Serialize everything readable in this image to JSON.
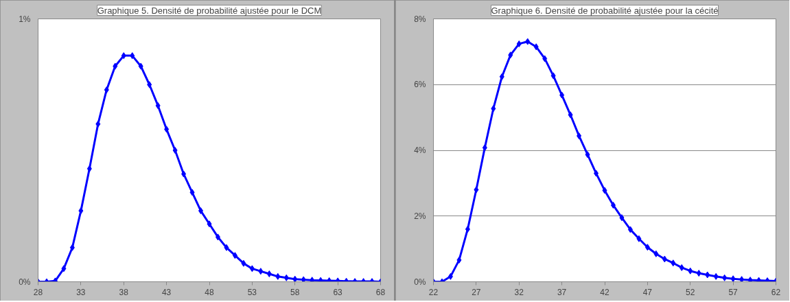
{
  "chart_data": [
    {
      "type": "line",
      "title": "Graphique 5. Densité de probabilité ajustée pour le DCM",
      "x": [
        28,
        29,
        30,
        31,
        32,
        33,
        34,
        35,
        36,
        37,
        38,
        39,
        40,
        41,
        42,
        43,
        44,
        45,
        46,
        47,
        48,
        49,
        50,
        51,
        52,
        53,
        54,
        55,
        56,
        57,
        58,
        59,
        60,
        61,
        62,
        63,
        64,
        65,
        66,
        67,
        68
      ],
      "series": [
        {
          "color": "#0000ff",
          "values": [
            0,
            0,
            0.003,
            0.05,
            0.13,
            0.27,
            0.43,
            0.6,
            0.73,
            0.82,
            0.86,
            0.86,
            0.82,
            0.75,
            0.67,
            0.58,
            0.5,
            0.41,
            0.34,
            0.27,
            0.22,
            0.17,
            0.13,
            0.1,
            0.07,
            0.05,
            0.04,
            0.03,
            0.02,
            0.015,
            0.01,
            0.008,
            0.006,
            0.005,
            0.004,
            0.003,
            0.002,
            0.001,
            0.001,
            0.001,
            0
          ]
        }
      ],
      "xlim": [
        28,
        68
      ],
      "xticks": [
        28,
        33,
        38,
        43,
        48,
        53,
        58,
        63,
        68
      ],
      "ylim": [
        0,
        1
      ],
      "yticks": [
        {
          "value": 0,
          "label": "0%"
        },
        {
          "value": 1,
          "label": "1%"
        }
      ],
      "grid": "y",
      "marker": "diamond",
      "line_style": "solid"
    },
    {
      "type": "line",
      "title": "Graphique 6. Densité de probabilité ajustée pour la cécité",
      "x": [
        22,
        23,
        24,
        25,
        26,
        27,
        28,
        29,
        30,
        31,
        32,
        33,
        34,
        35,
        36,
        37,
        38,
        39,
        40,
        41,
        42,
        43,
        44,
        45,
        46,
        47,
        48,
        49,
        50,
        51,
        52,
        53,
        54,
        55,
        56,
        57,
        58,
        59,
        60,
        61,
        62
      ],
      "series": [
        {
          "color": "#0000ff",
          "values": [
            0,
            0,
            0.16,
            0.66,
            1.6,
            2.8,
            4.08,
            5.27,
            6.24,
            6.9,
            7.24,
            7.31,
            7.15,
            6.79,
            6.27,
            5.68,
            5.08,
            4.44,
            3.87,
            3.3,
            2.78,
            2.33,
            1.95,
            1.59,
            1.31,
            1.05,
            0.85,
            0.69,
            0.57,
            0.43,
            0.33,
            0.26,
            0.21,
            0.16,
            0.12,
            0.09,
            0.07,
            0.05,
            0.04,
            0.03,
            0.02
          ]
        }
      ],
      "xlim": [
        22,
        62
      ],
      "xticks": [
        22,
        27,
        32,
        37,
        42,
        47,
        52,
        57,
        62
      ],
      "ylim": [
        0,
        8
      ],
      "yticks": [
        {
          "value": 0,
          "label": "0%"
        },
        {
          "value": 2,
          "label": "2%"
        },
        {
          "value": 4,
          "label": "4%"
        },
        {
          "value": 6,
          "label": "6%"
        },
        {
          "value": 8,
          "label": "8%"
        }
      ],
      "grid": "y",
      "marker": "diamond",
      "line_style": "solid"
    }
  ]
}
